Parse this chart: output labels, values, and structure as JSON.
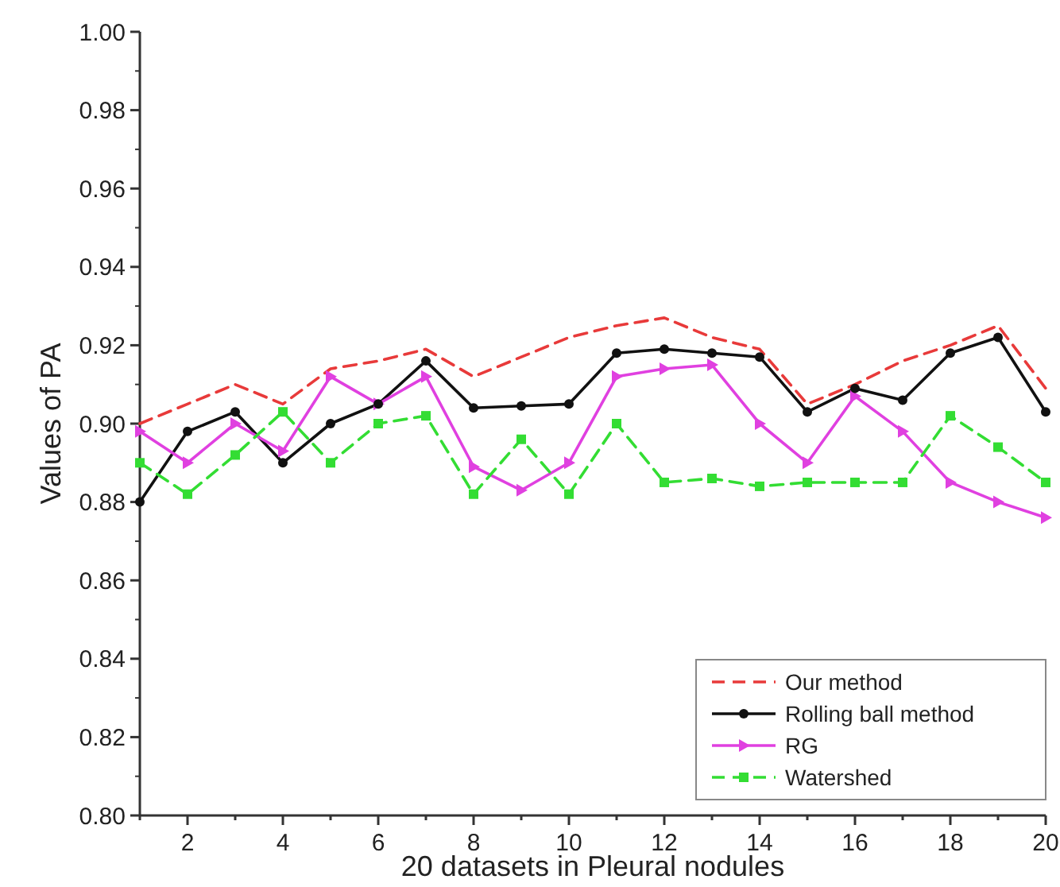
{
  "chart_data": {
    "type": "line",
    "xlabel": "20 datasets in Pleural nodules",
    "ylabel": "Values of PA",
    "x": [
      1,
      2,
      3,
      4,
      5,
      6,
      7,
      8,
      9,
      10,
      11,
      12,
      13,
      14,
      15,
      16,
      17,
      18,
      19,
      20
    ],
    "xlim": [
      1,
      20
    ],
    "xticks": [
      {
        "value": 1,
        "label": null
      },
      2,
      {
        "value": 3,
        "label": null
      },
      4,
      {
        "value": 5,
        "label": null
      },
      6,
      {
        "value": 7,
        "label": null
      },
      8,
      {
        "value": 9,
        "label": null
      },
      10,
      {
        "value": 11,
        "label": null
      },
      12,
      {
        "value": 13,
        "label": null
      },
      14,
      {
        "value": 15,
        "label": null
      },
      16,
      {
        "value": 17,
        "label": null
      },
      18,
      {
        "value": 19,
        "label": null
      },
      20
    ],
    "ylim": [
      0.8,
      1.0
    ],
    "yticks": [
      {
        "value": 0.8,
        "label": "0.80"
      },
      {
        "value": 0.82,
        "label": "0.82"
      },
      {
        "value": 0.84,
        "label": "0.84"
      },
      {
        "value": 0.86,
        "label": "0.86"
      },
      {
        "value": 0.88,
        "label": "0.88"
      },
      {
        "value": 0.9,
        "label": "0.90"
      },
      {
        "value": 0.92,
        "label": "0.92"
      },
      {
        "value": 0.94,
        "label": "0.94"
      },
      {
        "value": 0.96,
        "label": "0.96"
      },
      {
        "value": 0.98,
        "label": "0.98"
      },
      {
        "value": 1.0,
        "label": "1.00"
      }
    ],
    "legend": "bottom right",
    "grid": false,
    "series": [
      {
        "name": "Our method",
        "color": "#e83a3a",
        "line_style": "dashed",
        "marker": "none",
        "values": [
          0.9,
          0.905,
          0.91,
          0.905,
          0.914,
          0.916,
          0.919,
          0.912,
          0.917,
          0.922,
          0.925,
          0.927,
          0.922,
          0.919,
          0.905,
          0.91,
          0.916,
          0.92,
          0.925,
          0.909
        ]
      },
      {
        "name": "Rolling ball method",
        "color": "#111111",
        "line_style": "solid",
        "marker": "circle",
        "values": [
          0.88,
          0.898,
          0.903,
          0.89,
          0.9,
          0.905,
          0.916,
          0.904,
          0.9045,
          0.905,
          0.918,
          0.919,
          0.918,
          0.917,
          0.903,
          0.909,
          0.906,
          0.918,
          0.922,
          0.903
        ]
      },
      {
        "name": "RG",
        "color": "#e040e0",
        "line_style": "solid",
        "marker": "triangle",
        "values": [
          0.898,
          0.89,
          0.9,
          0.893,
          0.912,
          0.905,
          0.912,
          0.889,
          0.883,
          0.89,
          0.912,
          0.914,
          0.915,
          0.9,
          0.89,
          0.907,
          0.898,
          0.885,
          0.88,
          0.876
        ]
      },
      {
        "name": "Watershed",
        "color": "#33dd33",
        "line_style": "dashed",
        "marker": "square",
        "values": [
          0.89,
          0.882,
          0.892,
          0.903,
          0.89,
          0.9,
          0.902,
          0.882,
          0.896,
          0.882,
          0.9,
          0.885,
          0.886,
          0.884,
          0.885,
          0.885,
          0.885,
          0.902,
          0.894,
          0.885
        ]
      }
    ]
  }
}
